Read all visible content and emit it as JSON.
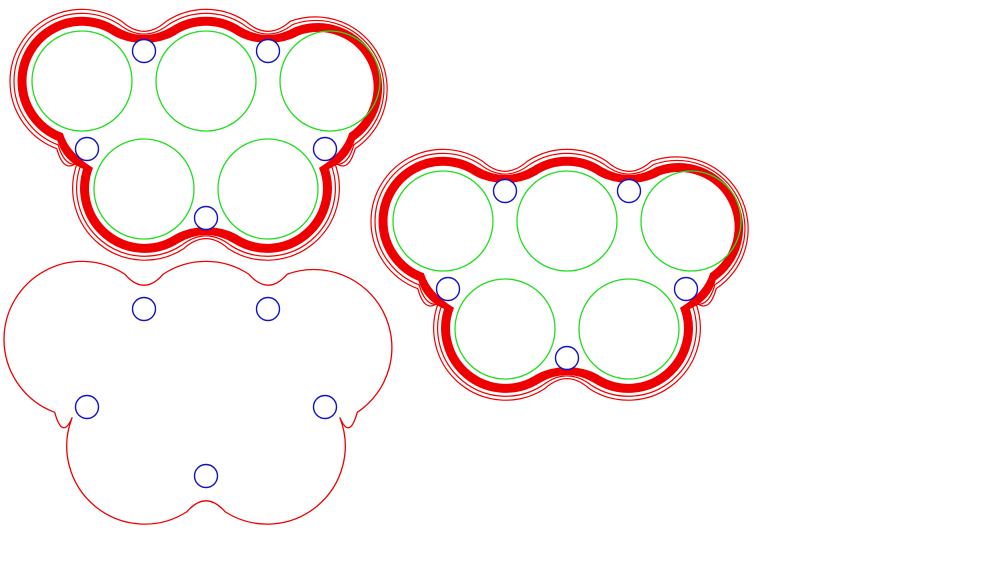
{
  "colors": {
    "background": "#ffffff",
    "outline": "#ee0000",
    "band": "#ee0000",
    "pocket": "#22dd22",
    "hole": "#1111cc",
    "hole_fill": "#ffffff"
  },
  "shapes": [
    {
      "name": "top-left-layout",
      "style": "banded"
    },
    {
      "name": "bottom-left-layout",
      "style": "outline"
    },
    {
      "name": "right-layout",
      "style": "banded"
    }
  ],
  "layout_counts": {
    "pockets_per_shape": 5,
    "holes_per_shape": 5
  }
}
